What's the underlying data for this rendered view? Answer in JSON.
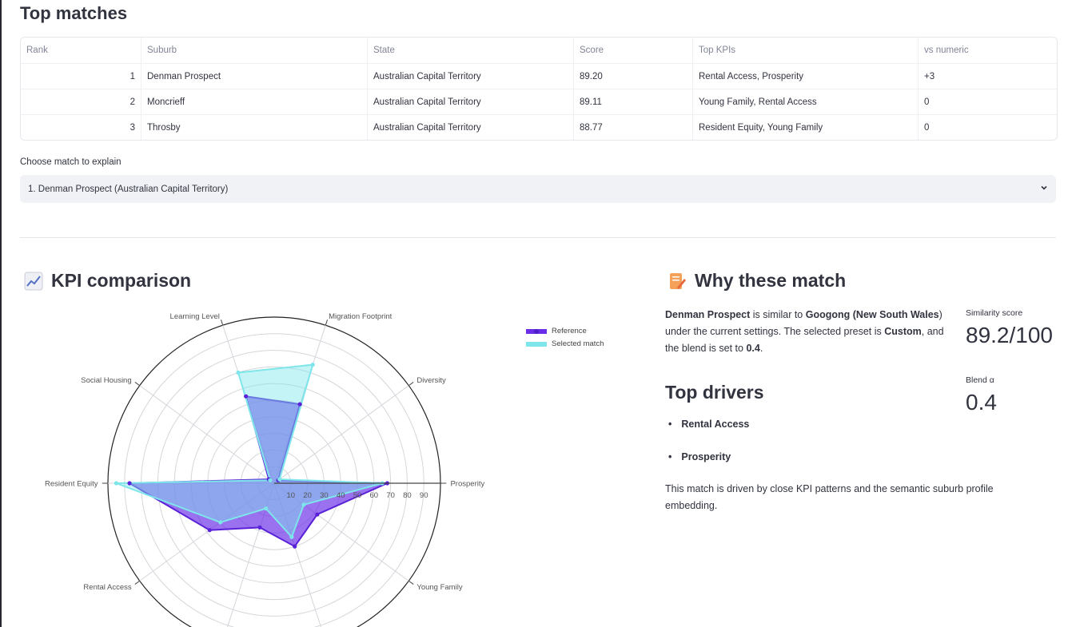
{
  "top_matches": {
    "title": "Top matches",
    "columns": [
      "Rank",
      "Suburb",
      "State",
      "Score",
      "Top KPIs",
      "vs numeric"
    ],
    "rows": [
      [
        "1",
        "Denman Prospect",
        "Australian Capital Territory",
        "89.20",
        "Rental Access, Prosperity",
        "+3"
      ],
      [
        "2",
        "Moncrieff",
        "Australian Capital Territory",
        "89.11",
        "Young Family, Rental Access",
        "0"
      ],
      [
        "3",
        "Throsby",
        "Australian Capital Territory",
        "88.77",
        "Resident Equity, Young Family",
        "0"
      ]
    ]
  },
  "selector": {
    "label": "Choose match to explain",
    "value": "1. Denman Prospect (Australian Capital Territory)"
  },
  "kpi_section": {
    "title": "KPI comparison",
    "icon": "chart-increasing-icon"
  },
  "why_section": {
    "title": "Why these match",
    "icon": "memo-icon",
    "intro": {
      "suburb": "Denman Prospect",
      "t1": " is similar to ",
      "target": "Googong",
      "t2": " (",
      "state": "New South Wales",
      "t3": ") under the current settings. The selected preset is ",
      "preset": "Custom",
      "t4": ", and the blend is set to ",
      "blend": "0.4",
      "t5": "."
    },
    "similarity": {
      "label": "Similarity score",
      "value": "89.2/100"
    },
    "blend_alpha": {
      "label": "Blend α",
      "value": "0.4"
    },
    "drivers_title": "Top drivers",
    "drivers": [
      "Rental Access",
      "Prosperity"
    ],
    "footer": "This match is driven by close KPI patterns and the semantic suburb profile embedding."
  },
  "chart_data": {
    "type": "radar",
    "categories": [
      "Prosperity",
      "Diversity",
      "Migration Footprint",
      "Learning Level",
      "Social Housing",
      "Resident Equity",
      "Rental Access",
      "",
      "",
      "Young Family"
    ],
    "radial_ticks": [
      10,
      20,
      30,
      40,
      50,
      60,
      70,
      80,
      90
    ],
    "rmax": 100,
    "series": [
      {
        "name": "Reference",
        "color": "#6a2ee8",
        "values": [
          68,
          3,
          50,
          55,
          4,
          87,
          48,
          28,
          40,
          32
        ]
      },
      {
        "name": "Selected match",
        "color": "#7ee6ea",
        "values": [
          65,
          4,
          75,
          70,
          3,
          95,
          40,
          16,
          34,
          22
        ]
      }
    ],
    "legend_position": "top-right"
  }
}
